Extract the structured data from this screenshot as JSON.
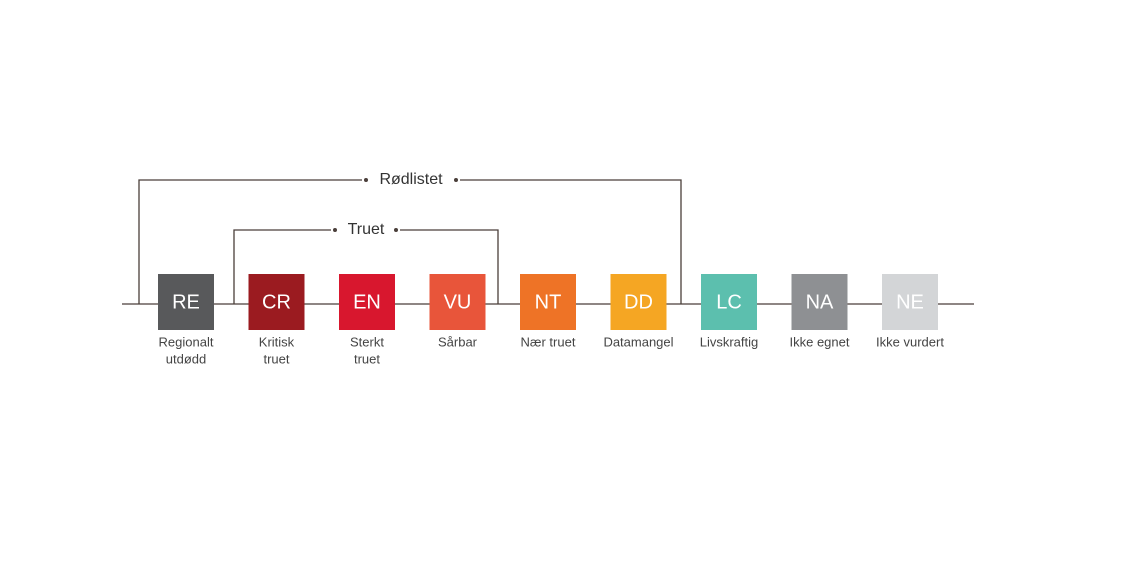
{
  "brackets": [
    "Rødlistet",
    "Truet"
  ],
  "categories": [
    {
      "code": "RE",
      "label": [
        "Regionalt",
        "utdødd"
      ],
      "color": "#58595b"
    },
    {
      "code": "CR",
      "label": [
        "Kritisk",
        "truet"
      ],
      "color": "#9b1b20"
    },
    {
      "code": "EN",
      "label": [
        "Sterkt",
        "truet"
      ],
      "color": "#d8172e"
    },
    {
      "code": "VU",
      "label": [
        "Sårbar"
      ],
      "color": "#e8553a"
    },
    {
      "code": "NT",
      "label": [
        "Nær truet"
      ],
      "color": "#ee7326"
    },
    {
      "code": "DD",
      "label": [
        "Datamangel"
      ],
      "color": "#f5a623"
    },
    {
      "code": "LC",
      "label": [
        "Livskraftig"
      ],
      "color": "#5cbfae"
    },
    {
      "code": "NA",
      "label": [
        "Ikke egnet"
      ],
      "color": "#8e9093"
    },
    {
      "code": "NE",
      "label": [
        "Ikke vurdert"
      ],
      "color": "#d3d5d7"
    }
  ]
}
